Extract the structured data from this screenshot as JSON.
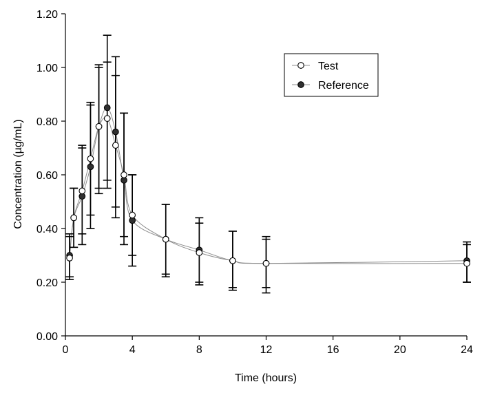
{
  "chart_data": {
    "type": "line",
    "xlabel": "Time (hours)",
    "ylabel": "Concentration (µg/mL)",
    "xlim": [
      0,
      24
    ],
    "ylim": [
      0,
      1.2
    ],
    "x_ticks": [
      0,
      4,
      8,
      12,
      16,
      20,
      24
    ],
    "y_ticks": [
      0.0,
      0.2,
      0.4,
      0.6,
      0.8,
      1.0,
      1.2
    ],
    "x_tick_labels": [
      "0",
      "4",
      "8",
      "12",
      "16",
      "20",
      "24"
    ],
    "y_tick_labels": [
      "0.00",
      "0.20",
      "0.40",
      "0.60",
      "0.80",
      "1.00",
      "1.20"
    ],
    "grid": false,
    "legend_position": "top-right",
    "series": [
      {
        "name": "Test",
        "marker": "open-circle",
        "x": [
          0.25,
          0.5,
          1.0,
          1.5,
          2.0,
          2.5,
          3.0,
          3.5,
          4.0,
          6.0,
          8.0,
          10.0,
          12.0,
          24.0
        ],
        "y": [
          0.29,
          0.44,
          0.54,
          0.66,
          0.78,
          0.81,
          0.71,
          0.6,
          0.45,
          0.36,
          0.31,
          0.28,
          0.27,
          0.27
        ],
        "err_low": [
          0.21,
          0.33,
          0.38,
          0.45,
          0.55,
          0.58,
          0.48,
          0.37,
          0.3,
          0.23,
          0.2,
          0.18,
          0.18,
          0.2
        ],
        "err_high": [
          0.37,
          0.55,
          0.7,
          0.87,
          1.01,
          1.02,
          0.97,
          0.83,
          0.6,
          0.49,
          0.42,
          0.39,
          0.36,
          0.34
        ]
      },
      {
        "name": "Reference",
        "marker": "filled-circle",
        "x": [
          0.25,
          0.5,
          1.0,
          1.5,
          2.0,
          2.5,
          3.0,
          3.5,
          4.0,
          6.0,
          8.0,
          10.0,
          12.0,
          24.0
        ],
        "y": [
          0.3,
          0.44,
          0.52,
          0.63,
          0.78,
          0.85,
          0.76,
          0.58,
          0.43,
          0.36,
          0.32,
          0.28,
          0.27,
          0.28
        ],
        "err_low": [
          0.22,
          0.33,
          0.34,
          0.4,
          0.53,
          0.55,
          0.44,
          0.34,
          0.26,
          0.22,
          0.19,
          0.17,
          0.16,
          0.2
        ],
        "err_high": [
          0.38,
          0.55,
          0.71,
          0.86,
          1.0,
          1.12,
          1.04,
          0.83,
          0.6,
          0.49,
          0.44,
          0.39,
          0.37,
          0.35
        ]
      }
    ]
  }
}
